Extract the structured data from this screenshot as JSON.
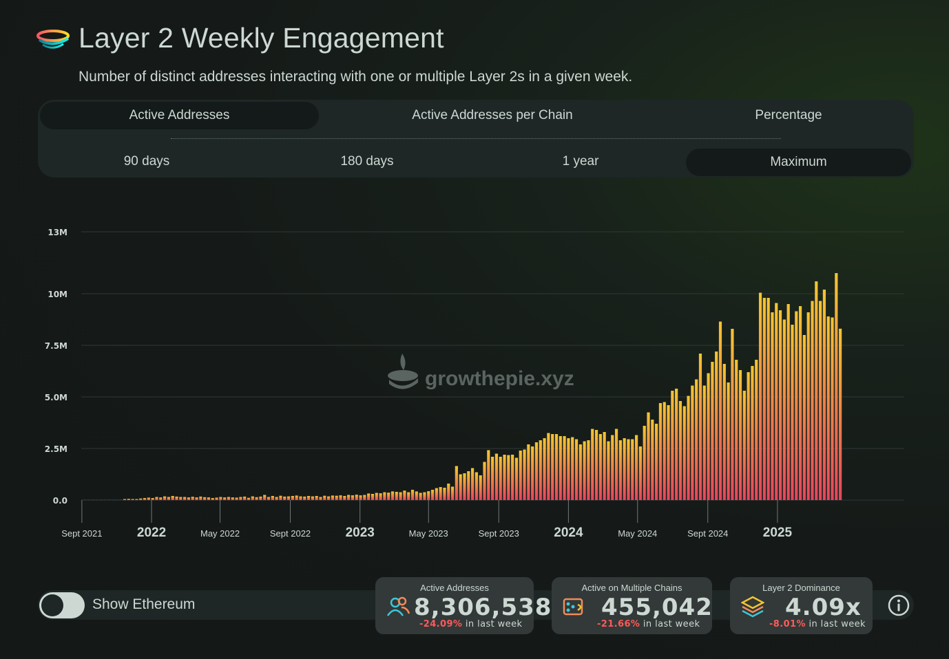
{
  "header": {
    "title": "Layer 2 Weekly Engagement",
    "subtitle": "Number of distinct addresses interacting with one or multiple Layer 2s in a given week."
  },
  "metric_tabs": [
    {
      "label": "Active Addresses",
      "active": true
    },
    {
      "label": "Active Addresses per Chain",
      "active": false
    },
    {
      "label": "Percentage",
      "active": false
    }
  ],
  "range_tabs": [
    {
      "label": "90 days",
      "active": false
    },
    {
      "label": "180 days",
      "active": false
    },
    {
      "label": "1 year",
      "active": false
    },
    {
      "label": "Maximum",
      "active": true
    }
  ],
  "watermark": "growthepie.xyz",
  "toggle": {
    "label": "Show Ethereum",
    "on": false
  },
  "cards": [
    {
      "label": "Active Addresses",
      "value": "8,306,538",
      "change": "-24.09%",
      "suffix": "in last week",
      "icon": "users-icon"
    },
    {
      "label": "Active on Multiple Chains",
      "value": "455,042",
      "change": "-21.66%",
      "suffix": "in last week",
      "icon": "multichain-icon"
    },
    {
      "label": "Layer 2 Dominance",
      "value": "4.09x",
      "change": "-8.01%",
      "suffix": "in last week",
      "icon": "layers-icon"
    }
  ],
  "colors": {
    "bar_top": "#f5c531",
    "bar_bottom": "#e6455e",
    "text": "#cdd8d3",
    "negative": "#ff5a5a"
  },
  "chart_data": {
    "type": "bar",
    "title": "",
    "xlabel": "",
    "ylabel": "",
    "ylim": [
      0,
      13000000
    ],
    "yticks": [
      {
        "value": 0,
        "label": "0.0"
      },
      {
        "value": 2500000,
        "label": "2.5M"
      },
      {
        "value": 5000000,
        "label": "5.0M"
      },
      {
        "value": 7500000,
        "label": "7.5M"
      },
      {
        "value": 10000000,
        "label": "10M"
      },
      {
        "value": 13000000,
        "label": "13M"
      }
    ],
    "xticks": [
      {
        "date": "2021-09-01",
        "label": "Sept 2021",
        "major": false
      },
      {
        "date": "2022-01-01",
        "label": "2022",
        "major": true
      },
      {
        "date": "2022-05-01",
        "label": "May 2022",
        "major": false
      },
      {
        "date": "2022-09-01",
        "label": "Sept 2022",
        "major": false
      },
      {
        "date": "2023-01-01",
        "label": "2023",
        "major": true
      },
      {
        "date": "2023-05-01",
        "label": "May 2023",
        "major": false
      },
      {
        "date": "2023-09-01",
        "label": "Sept 2023",
        "major": false
      },
      {
        "date": "2024-01-01",
        "label": "2024",
        "major": true
      },
      {
        "date": "2024-05-01",
        "label": "May 2024",
        "major": false
      },
      {
        "date": "2024-09-01",
        "label": "Sept 2024",
        "major": false
      },
      {
        "date": "2025-01-01",
        "label": "2025",
        "major": true
      }
    ],
    "grid": true,
    "series": [
      {
        "frequency": "weekly",
        "start_date": "2021-09-06",
        "values": [
          0,
          0,
          0,
          0,
          0,
          0,
          0,
          0,
          0,
          0,
          40000,
          60000,
          50000,
          50000,
          80000,
          100000,
          120000,
          100000,
          150000,
          130000,
          180000,
          150000,
          200000,
          170000,
          150000,
          150000,
          130000,
          160000,
          130000,
          170000,
          140000,
          130000,
          100000,
          120000,
          150000,
          130000,
          150000,
          130000,
          120000,
          150000,
          170000,
          110000,
          180000,
          140000,
          170000,
          250000,
          150000,
          200000,
          150000,
          210000,
          170000,
          180000,
          200000,
          220000,
          180000,
          170000,
          200000,
          180000,
          200000,
          150000,
          210000,
          180000,
          220000,
          210000,
          230000,
          200000,
          250000,
          230000,
          260000,
          230000,
          250000,
          320000,
          300000,
          350000,
          330000,
          380000,
          360000,
          420000,
          400000,
          380000,
          460000,
          380000,
          500000,
          420000,
          350000,
          380000,
          430000,
          500000,
          580000,
          630000,
          600000,
          800000,
          650000,
          1650000,
          1250000,
          1300000,
          1400000,
          1550000,
          1350000,
          1200000,
          1850000,
          2420000,
          2100000,
          2250000,
          2100000,
          2200000,
          2180000,
          2200000,
          2050000,
          2400000,
          2450000,
          2700000,
          2600000,
          2800000,
          2900000,
          3000000,
          3250000,
          3200000,
          3200000,
          3100000,
          3100000,
          3000000,
          3050000,
          2950000,
          2700000,
          2850000,
          2900000,
          3450000,
          3400000,
          3200000,
          3300000,
          2850000,
          3150000,
          3450000,
          2900000,
          3000000,
          2950000,
          2950000,
          3150000,
          2600000,
          3600000,
          4250000,
          3900000,
          3700000,
          4700000,
          4750000,
          4600000,
          5300000,
          5400000,
          4800000,
          4550000,
          5050000,
          5550000,
          5850000,
          7100000,
          5550000,
          6150000,
          6700000,
          7200000,
          8650000,
          6600000,
          5700000,
          8300000,
          6800000,
          6300000,
          5300000,
          6200000,
          6500000,
          6800000,
          10050000,
          9800000,
          9800000,
          9100000,
          9550000,
          9200000,
          8750000,
          9500000,
          8500000,
          9150000,
          9400000,
          8000000,
          9100000,
          9650000,
          10600000,
          9650000,
          10200000,
          8900000,
          8850000,
          11000000,
          8306538
        ]
      }
    ]
  }
}
